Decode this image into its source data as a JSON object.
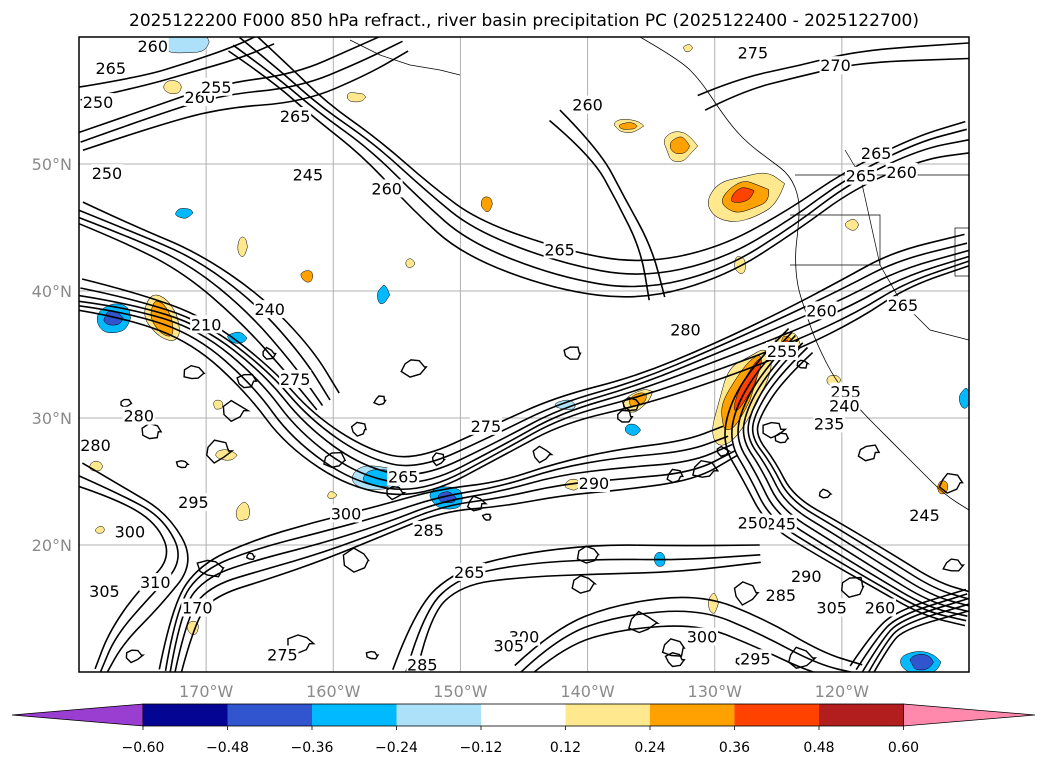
{
  "chart_data": {
    "type": "contour map",
    "title": "2025122200 F000 850 hPa refract., river basin precipitation PC (2025122400 - 2025122700)",
    "map": {
      "lon_range": [
        -180,
        -110
      ],
      "lat_range": [
        10,
        60
      ],
      "x_ticks": [
        {
          "lon": -170,
          "label": "170°W"
        },
        {
          "lon": -160,
          "label": "160°W"
        },
        {
          "lon": -150,
          "label": "150°W"
        },
        {
          "lon": -140,
          "label": "140°W"
        },
        {
          "lon": -130,
          "label": "130°W"
        },
        {
          "lon": -120,
          "label": "120°W"
        }
      ],
      "y_ticks": [
        {
          "lat": 20,
          "label": "20°N"
        },
        {
          "lat": 30,
          "label": "30°N"
        },
        {
          "lat": 40,
          "label": "40°N"
        },
        {
          "lat": 50,
          "label": "50°N"
        }
      ],
      "grid": true
    },
    "contour_labels": [
      {
        "lon": -174.2,
        "lat": 59.2,
        "text": "260"
      },
      {
        "lon": -177.5,
        "lat": 57.5,
        "text": "265"
      },
      {
        "lon": -178.5,
        "lat": 54.8,
        "text": "250"
      },
      {
        "lon": -170.5,
        "lat": 55.2,
        "text": "260"
      },
      {
        "lon": -169.2,
        "lat": 56.0,
        "text": "255"
      },
      {
        "lon": -163.0,
        "lat": 53.7,
        "text": "265"
      },
      {
        "lon": -177.8,
        "lat": 49.2,
        "text": "250"
      },
      {
        "lon": -162.0,
        "lat": 49.1,
        "text": "245"
      },
      {
        "lon": -155.8,
        "lat": 48.0,
        "text": "260"
      },
      {
        "lon": -140.0,
        "lat": 54.6,
        "text": "260"
      },
      {
        "lon": -127.0,
        "lat": 58.7,
        "text": "275"
      },
      {
        "lon": -120.5,
        "lat": 57.7,
        "text": "270"
      },
      {
        "lon": -117.3,
        "lat": 50.8,
        "text": "265"
      },
      {
        "lon": -115.3,
        "lat": 49.3,
        "text": "260"
      },
      {
        "lon": -118.5,
        "lat": 49.0,
        "text": "265"
      },
      {
        "lon": -142.2,
        "lat": 43.2,
        "text": "265"
      },
      {
        "lon": -165.0,
        "lat": 38.5,
        "text": "240"
      },
      {
        "lon": -170.0,
        "lat": 37.3,
        "text": "210"
      },
      {
        "lon": -163.0,
        "lat": 33.0,
        "text": "275"
      },
      {
        "lon": -132.3,
        "lat": 36.9,
        "text": "280"
      },
      {
        "lon": -121.6,
        "lat": 38.4,
        "text": "260"
      },
      {
        "lon": -115.2,
        "lat": 38.8,
        "text": "265"
      },
      {
        "lon": -124.7,
        "lat": 35.2,
        "text": "255"
      },
      {
        "lon": -119.7,
        "lat": 32.0,
        "text": "255"
      },
      {
        "lon": -119.8,
        "lat": 30.9,
        "text": "240"
      },
      {
        "lon": -121.0,
        "lat": 29.5,
        "text": "235"
      },
      {
        "lon": -175.3,
        "lat": 30.1,
        "text": "280"
      },
      {
        "lon": -148.0,
        "lat": 29.3,
        "text": "275"
      },
      {
        "lon": -178.7,
        "lat": 27.8,
        "text": "280"
      },
      {
        "lon": -154.5,
        "lat": 25.3,
        "text": "265"
      },
      {
        "lon": -139.5,
        "lat": 24.8,
        "text": "290"
      },
      {
        "lon": -171.0,
        "lat": 23.3,
        "text": "295"
      },
      {
        "lon": -159.0,
        "lat": 22.4,
        "text": "300"
      },
      {
        "lon": -152.5,
        "lat": 21.1,
        "text": "285"
      },
      {
        "lon": -176.0,
        "lat": 21.0,
        "text": "300"
      },
      {
        "lon": -113.5,
        "lat": 22.3,
        "text": "245"
      },
      {
        "lon": -124.8,
        "lat": 21.6,
        "text": "245"
      },
      {
        "lon": -127.0,
        "lat": 21.7,
        "text": "250"
      },
      {
        "lon": -149.3,
        "lat": 17.8,
        "text": "265"
      },
      {
        "lon": -178.0,
        "lat": 16.3,
        "text": "305"
      },
      {
        "lon": -170.7,
        "lat": 15.0,
        "text": "170"
      },
      {
        "lon": -122.8,
        "lat": 17.5,
        "text": "290"
      },
      {
        "lon": -124.8,
        "lat": 16.0,
        "text": "285"
      },
      {
        "lon": -120.8,
        "lat": 15.0,
        "text": "305"
      },
      {
        "lon": -117.0,
        "lat": 15.0,
        "text": "260"
      },
      {
        "lon": -131.0,
        "lat": 12.7,
        "text": "300"
      },
      {
        "lon": -126.8,
        "lat": 11.0,
        "text": "295"
      },
      {
        "lon": -145.0,
        "lat": 12.7,
        "text": "300"
      },
      {
        "lon": -146.2,
        "lat": 12.0,
        "text": "305"
      },
      {
        "lon": -164.0,
        "lat": 11.3,
        "text": "275"
      },
      {
        "lon": -153.0,
        "lat": 10.5,
        "text": "285"
      },
      {
        "lon": -174.0,
        "lat": 17.0,
        "text": "310"
      }
    ],
    "colorbar": {
      "colors": [
        "#9a3dd1",
        "#050594",
        "#3155cf",
        "#00b9ff",
        "#ade1fa",
        "#ffffff",
        "#ffe88e",
        "#ffa100",
        "#ff4200",
        "#b21d1d",
        "#ff89ad"
      ],
      "tick_labels": [
        "−0.60",
        "−0.48",
        "−0.36",
        "−0.24",
        "−0.12",
        "0.12",
        "0.24",
        "0.36",
        "0.48",
        "0.60"
      ],
      "extend": "both"
    }
  }
}
